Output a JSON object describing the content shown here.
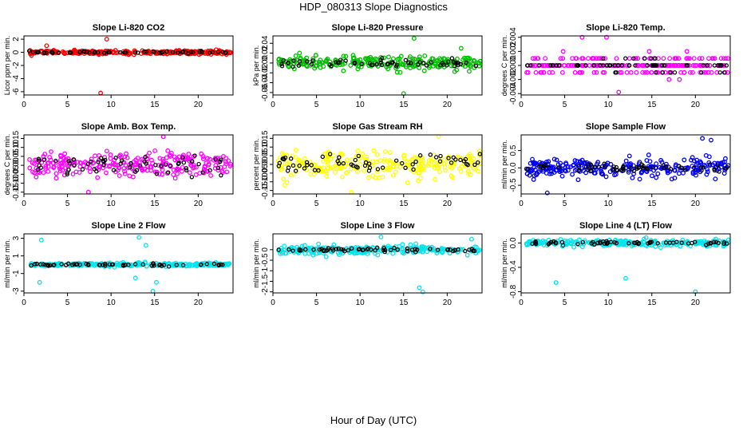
{
  "title": "HDP_080313  Slope Diagnostics",
  "xlabel": "Hour of Day (UTC)",
  "chart_data": [
    {
      "type": "scatter",
      "title": "Slope Li-820 CO2",
      "ylabel": "Licor ppm per min.",
      "color": "#ff0000",
      "xlim": [
        0,
        24
      ],
      "xticks": [
        0,
        5,
        10,
        15,
        20
      ],
      "ylim": [
        -6.5,
        2.5
      ],
      "yticks": [
        -6,
        -4,
        -2,
        0,
        2
      ],
      "noise": 0.25,
      "black_noise": 0.15,
      "outliers": [
        [
          9.5,
          2.0
        ],
        [
          2.6,
          1.0
        ],
        [
          8.8,
          -6.2
        ]
      ]
    },
    {
      "type": "scatter",
      "title": "Slope Li-820 Pressure",
      "ylabel": "kPa per min.",
      "color": "#00c000",
      "xlim": [
        0,
        24
      ],
      "xticks": [
        0,
        5,
        10,
        15,
        20
      ],
      "ylim": [
        -0.065,
        0.055
      ],
      "yticks": [
        -0.06,
        -0.04,
        -0.02,
        0.0,
        0.02,
        0.04
      ],
      "noise": 0.012,
      "black_noise": 0.008,
      "outliers": [
        [
          16.2,
          0.05
        ],
        [
          15.0,
          -0.062
        ],
        [
          21.6,
          0.03
        ]
      ]
    },
    {
      "type": "scatter",
      "title": "Slope Li-820 Temp.",
      "ylabel": "degrees C per min.",
      "color": "#ff00ff",
      "xlim": [
        0,
        24
      ],
      "xticks": [
        0,
        5,
        10,
        15,
        20
      ],
      "ylim": [
        -0.0042,
        0.0042
      ],
      "yticks": [
        -0.004,
        -0.002,
        0.0,
        0.002,
        0.004
      ],
      "quantize": 0.001,
      "noise": 0.0012,
      "black_noise": 0.0009,
      "outliers": [
        [
          9.8,
          0.004
        ],
        [
          7.0,
          0.004
        ],
        [
          11.2,
          -0.0038
        ]
      ]
    },
    {
      "type": "scatter",
      "title": "Slope Amb. Box Temp.",
      "ylabel": "degrees C per min.",
      "color": "#ff00ff",
      "xlim": [
        0,
        24
      ],
      "xticks": [
        0,
        5,
        10,
        15,
        20
      ],
      "ylim": [
        -0.16,
        0.17
      ],
      "yticks": [
        -0.15,
        -0.1,
        -0.05,
        0.0,
        0.05,
        0.1,
        0.15
      ],
      "noise": 0.065,
      "black_noise": 0.05,
      "outliers": [
        [
          16.0,
          0.16
        ],
        [
          7.4,
          -0.15
        ]
      ]
    },
    {
      "type": "scatter",
      "title": "Slope Gas Stream RH",
      "ylabel": "percent per min.",
      "color": "#ffff00",
      "xlim": [
        0,
        24
      ],
      "xticks": [
        0,
        5,
        10,
        15,
        20
      ],
      "ylim": [
        -0.17,
        0.17
      ],
      "yticks": [
        -0.15,
        -0.1,
        -0.05,
        0.0,
        0.05,
        0.1,
        0.15
      ],
      "noise": 0.065,
      "black_noise": 0.06,
      "outliers": [
        [
          19.0,
          0.16
        ],
        [
          9.0,
          -0.16
        ]
      ]
    },
    {
      "type": "scatter",
      "title": "Slope Sample Flow",
      "ylabel": "ml/min per min.",
      "color": "#0000ff",
      "xlim": [
        0,
        24
      ],
      "xticks": [
        0,
        5,
        10,
        15,
        20
      ],
      "ylim": [
        -0.75,
        0.95
      ],
      "yticks": [
        -0.5,
        0.0,
        0.5
      ],
      "noise": 0.25,
      "black_noise": 0.12,
      "outliers": [
        [
          20.8,
          0.85
        ],
        [
          3.0,
          -0.72
        ],
        [
          21.8,
          0.8
        ]
      ]
    },
    {
      "type": "scatter",
      "title": "Slope Line 2 Flow",
      "ylabel": "ml/min per min.",
      "color": "#00e5ee",
      "xlim": [
        0,
        24
      ],
      "xticks": [
        0,
        5,
        10,
        15,
        20
      ],
      "ylim": [
        -3.2,
        3.5
      ],
      "yticks": [
        -3,
        -1,
        1,
        3
      ],
      "noise": 0.18,
      "black_noise": 0.12,
      "outliers": [
        [
          2.0,
          2.8
        ],
        [
          1.8,
          -2.0
        ],
        [
          13.2,
          3.1
        ],
        [
          14.8,
          -3.0
        ],
        [
          15.2,
          -2.0
        ],
        [
          12.8,
          -1.5
        ],
        [
          14.0,
          2.2
        ]
      ]
    },
    {
      "type": "scatter",
      "title": "Slope Line 3 Flow",
      "ylabel": "ml/min per min.",
      "color": "#00e5ee",
      "xlim": [
        0,
        24
      ],
      "xticks": [
        0,
        5,
        10,
        15,
        20
      ],
      "ylim": [
        -2.05,
        0.75
      ],
      "yticks": [
        -2.0,
        -1.5,
        -1.0,
        -0.5,
        0.0
      ],
      "noise": 0.18,
      "black_noise": 0.1,
      "outliers": [
        [
          16.8,
          -1.8
        ],
        [
          17.2,
          -2.0
        ],
        [
          12.4,
          0.6
        ],
        [
          22.8,
          0.5
        ]
      ]
    },
    {
      "type": "scatter",
      "title": "Slope Line 4 (LT) Flow",
      "ylabel": "ml/min per min.",
      "color": "#00e5ee",
      "xlim": [
        0,
        24
      ],
      "xticks": [
        0,
        5,
        10,
        15,
        20
      ],
      "ylim": [
        -0.82,
        0.15
      ],
      "yticks": [
        -0.8,
        -0.4,
        0.0
      ],
      "noise": 0.045,
      "black_noise": 0.03,
      "outliers": [
        [
          4.0,
          -0.65
        ],
        [
          12.0,
          -0.58
        ],
        [
          20.0,
          -0.8
        ]
      ]
    }
  ]
}
